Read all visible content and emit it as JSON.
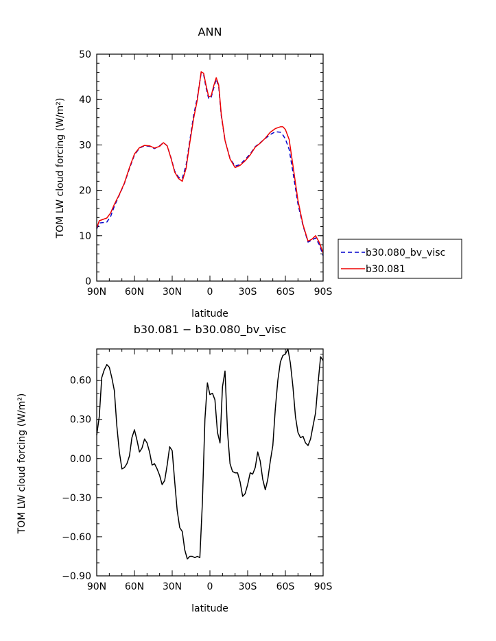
{
  "chart_data": [
    {
      "type": "line",
      "title": "ANN",
      "xlabel": "latitude",
      "ylabel": "TOM LW cloud forcing (W/m²)",
      "xlim": [
        90,
        -90
      ],
      "ylim": [
        0,
        50
      ],
      "x_ticks": [
        {
          "value": 90,
          "label": "90N"
        },
        {
          "value": 60,
          "label": "60N"
        },
        {
          "value": 30,
          "label": "30N"
        },
        {
          "value": 0,
          "label": "0"
        },
        {
          "value": -30,
          "label": "30S"
        },
        {
          "value": -60,
          "label": "60S"
        },
        {
          "value": -90,
          "label": "90S"
        }
      ],
      "y_ticks": [
        0,
        10,
        20,
        30,
        40,
        50
      ],
      "legend_position": "outside-right",
      "x": [
        90,
        88,
        85,
        82,
        79,
        76,
        72,
        68,
        64,
        60,
        56,
        52,
        48,
        44,
        40,
        37,
        34,
        31,
        28,
        25,
        22,
        19,
        16,
        13,
        10,
        7,
        5,
        3,
        1,
        -1,
        -3,
        -5,
        -7,
        -9,
        -12,
        -16,
        -20,
        -24,
        -28,
        -32,
        -36,
        -40,
        -44,
        -48,
        -52,
        -56,
        -58,
        -60,
        -63,
        -66,
        -70,
        -74,
        -78,
        -81,
        -84,
        -87,
        -90
      ],
      "series": [
        {
          "name": "b30.080_bv_visc",
          "color": "#0000cc",
          "dash": true,
          "values": [
            11.5,
            12.8,
            12.9,
            13.0,
            14.2,
            16.5,
            19.0,
            21.5,
            24.8,
            27.8,
            29.3,
            29.8,
            29.7,
            29.2,
            29.8,
            30.5,
            29.8,
            27.2,
            24.2,
            22.9,
            22.6,
            25.5,
            31.0,
            36.5,
            40.5,
            45.8,
            45.5,
            42.5,
            40.2,
            40.5,
            42.5,
            44.5,
            42.8,
            36.5,
            31.0,
            27.0,
            25.3,
            25.7,
            26.8,
            28.0,
            29.6,
            30.5,
            31.4,
            32.3,
            32.9,
            32.8,
            32.2,
            31.3,
            29.0,
            24.0,
            17.0,
            12.2,
            8.6,
            9.0,
            9.5,
            8.0,
            5.6
          ]
        },
        {
          "name": "b30.081",
          "color": "#ee0000",
          "dash": false,
          "values": [
            11.7,
            13.3,
            13.6,
            13.9,
            15.0,
            16.9,
            19.1,
            21.6,
            25.0,
            28.0,
            29.4,
            29.9,
            29.8,
            29.3,
            29.7,
            30.5,
            29.8,
            27.1,
            24.0,
            22.6,
            22.0,
            24.8,
            30.5,
            35.8,
            40.0,
            46.1,
            45.8,
            43.0,
            40.6,
            40.8,
            43.0,
            44.8,
            43.2,
            36.8,
            31.0,
            26.9,
            25.0,
            25.5,
            26.5,
            27.8,
            29.5,
            30.4,
            31.5,
            32.8,
            33.6,
            34.0,
            34.0,
            33.4,
            31.2,
            25.5,
            17.8,
            12.4,
            8.8,
            9.2,
            10.0,
            8.5,
            6.2
          ]
        }
      ]
    },
    {
      "type": "line",
      "title": "b30.081 − b30.080_bv_visc",
      "xlabel": "latitude",
      "ylabel": "TOM LW cloud forcing (W/m²)",
      "xlim": [
        90,
        -90
      ],
      "ylim": [
        -0.9,
        0.84
      ],
      "x_ticks": [
        {
          "value": 90,
          "label": "90N"
        },
        {
          "value": 60,
          "label": "60N"
        },
        {
          "value": 30,
          "label": "30N"
        },
        {
          "value": 0,
          "label": "0"
        },
        {
          "value": -30,
          "label": "30S"
        },
        {
          "value": -60,
          "label": "60S"
        },
        {
          "value": -90,
          "label": "90S"
        }
      ],
      "y_ticks": [
        {
          "value": -0.9,
          "label": "−0.90"
        },
        {
          "value": -0.6,
          "label": "−0.60"
        },
        {
          "value": -0.3,
          "label": "−0.30"
        },
        {
          "value": 0.0,
          "label": "0.00"
        },
        {
          "value": 0.3,
          "label": "0.30"
        },
        {
          "value": 0.6,
          "label": "0.60"
        }
      ],
      "x": [
        90,
        88,
        86,
        84,
        82,
        80,
        78,
        76,
        74,
        72,
        70,
        68,
        66,
        64,
        62,
        60,
        58,
        56,
        54,
        52,
        50,
        48,
        46,
        44,
        42,
        40,
        38,
        36,
        34,
        32,
        30,
        28,
        26,
        24,
        22,
        20,
        18,
        16,
        14,
        12,
        10,
        8,
        6,
        4,
        2,
        0,
        -2,
        -4,
        -6,
        -8,
        -10,
        -12,
        -14,
        -16,
        -18,
        -20,
        -22,
        -24,
        -26,
        -28,
        -30,
        -32,
        -34,
        -36,
        -38,
        -40,
        -42,
        -44,
        -46,
        -48,
        -50,
        -52,
        -54,
        -56,
        -58,
        -60,
        -62,
        -64,
        -66,
        -68,
        -70,
        -72,
        -74,
        -76,
        -78,
        -80,
        -82,
        -84,
        -86,
        -88,
        -90
      ],
      "series": [
        {
          "name": "b30.081 − b30.080_bv_visc",
          "color": "#000000",
          "dash": false,
          "values": [
            0.18,
            0.32,
            0.62,
            0.68,
            0.72,
            0.7,
            0.62,
            0.52,
            0.25,
            0.05,
            -0.08,
            -0.07,
            -0.04,
            0.02,
            0.16,
            0.22,
            0.14,
            0.05,
            0.08,
            0.15,
            0.12,
            0.05,
            -0.05,
            -0.04,
            -0.08,
            -0.13,
            -0.2,
            -0.17,
            -0.05,
            0.09,
            0.06,
            -0.18,
            -0.4,
            -0.53,
            -0.56,
            -0.7,
            -0.77,
            -0.75,
            -0.75,
            -0.76,
            -0.75,
            -0.76,
            -0.34,
            0.3,
            0.58,
            0.49,
            0.5,
            0.45,
            0.2,
            0.12,
            0.55,
            0.67,
            0.2,
            -0.04,
            -0.1,
            -0.11,
            -0.11,
            -0.18,
            -0.29,
            -0.27,
            -0.2,
            -0.11,
            -0.12,
            -0.07,
            0.05,
            -0.02,
            -0.16,
            -0.24,
            -0.16,
            -0.02,
            0.1,
            0.38,
            0.6,
            0.74,
            0.79,
            0.8,
            0.84,
            0.73,
            0.55,
            0.32,
            0.2,
            0.16,
            0.17,
            0.12,
            0.1,
            0.15,
            0.25,
            0.35,
            0.58,
            0.78,
            0.75
          ]
        }
      ]
    }
  ]
}
